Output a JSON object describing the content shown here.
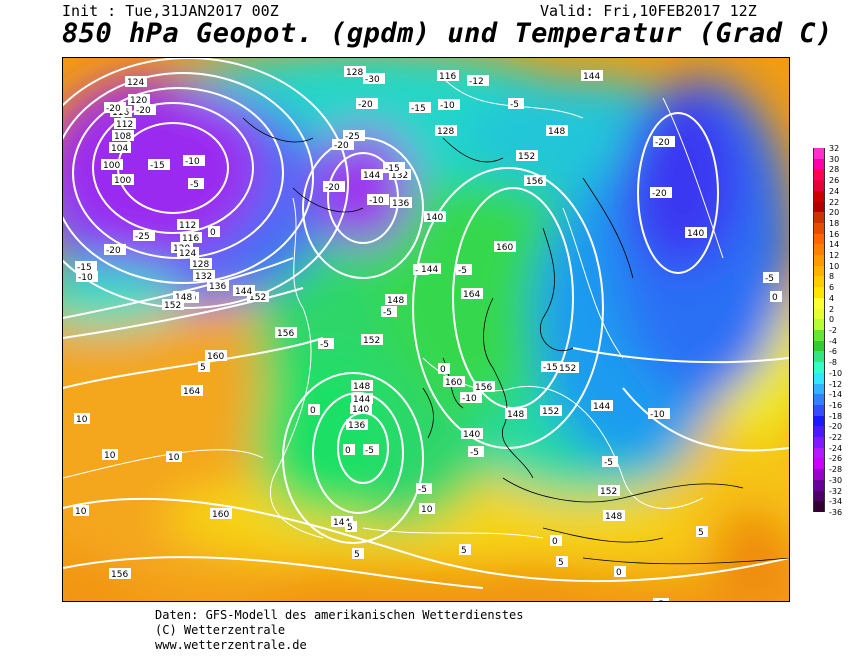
{
  "header": {
    "init": "Init : Tue,31JAN2017 00Z",
    "valid": "Valid: Fri,10FEB2017 12Z",
    "title": "850 hPa Geopot. (gpdm) und Temperatur (Grad C)"
  },
  "map": {
    "labels": [
      {
        "text": "124",
        "kind": "geopot"
      },
      {
        "text": "120",
        "kind": "geopot"
      },
      {
        "text": "116",
        "kind": "geopot"
      },
      {
        "text": "112",
        "kind": "geopot"
      },
      {
        "text": "108",
        "kind": "geopot"
      },
      {
        "text": "104",
        "kind": "geopot"
      },
      {
        "text": "100",
        "kind": "geopot"
      },
      {
        "text": "100",
        "kind": "geopot"
      },
      {
        "text": "-30",
        "kind": "temp"
      },
      {
        "text": "-30",
        "kind": "temp"
      },
      {
        "text": "-20",
        "kind": "temp"
      },
      {
        "text": "-20",
        "kind": "temp"
      },
      {
        "text": "-15",
        "kind": "temp"
      },
      {
        "text": "-10",
        "kind": "temp"
      },
      {
        "text": "-25",
        "kind": "temp"
      },
      {
        "text": "-20",
        "kind": "temp"
      },
      {
        "text": "-15",
        "kind": "temp"
      },
      {
        "text": "-10",
        "kind": "temp"
      },
      {
        "text": "-5",
        "kind": "temp"
      },
      {
        "text": "0",
        "kind": "temp"
      },
      {
        "text": "112",
        "kind": "geopot"
      },
      {
        "text": "116",
        "kind": "geopot"
      },
      {
        "text": "120",
        "kind": "geopot"
      },
      {
        "text": "124",
        "kind": "geopot"
      },
      {
        "text": "128",
        "kind": "geopot"
      },
      {
        "text": "132",
        "kind": "geopot"
      },
      {
        "text": "136",
        "kind": "geopot"
      },
      {
        "text": "140",
        "kind": "geopot"
      },
      {
        "text": "148",
        "kind": "geopot"
      },
      {
        "text": "152",
        "kind": "geopot"
      },
      {
        "text": "156",
        "kind": "geopot"
      },
      {
        "text": "144",
        "kind": "geopot"
      },
      {
        "text": "152",
        "kind": "geopot"
      },
      {
        "text": "10",
        "kind": "temp"
      },
      {
        "text": "10",
        "kind": "temp"
      },
      {
        "text": "160",
        "kind": "geopot"
      },
      {
        "text": "5",
        "kind": "temp"
      },
      {
        "text": "164",
        "kind": "geopot"
      },
      {
        "text": "10",
        "kind": "temp"
      },
      {
        "text": "10",
        "kind": "temp"
      },
      {
        "text": "160",
        "kind": "geopot"
      },
      {
        "text": "156",
        "kind": "geopot"
      },
      {
        "text": "128",
        "kind": "geopot"
      },
      {
        "text": "-30",
        "kind": "temp"
      },
      {
        "text": "-20",
        "kind": "temp"
      },
      {
        "text": "-25",
        "kind": "temp"
      },
      {
        "text": "-20",
        "kind": "temp"
      },
      {
        "text": "144",
        "kind": "geopot"
      },
      {
        "text": "-20",
        "kind": "temp"
      },
      {
        "text": "132",
        "kind": "geopot"
      },
      {
        "text": "-15",
        "kind": "temp"
      },
      {
        "text": "136",
        "kind": "geopot"
      },
      {
        "text": "-10",
        "kind": "temp"
      },
      {
        "text": "140",
        "kind": "geopot"
      },
      {
        "text": "-5",
        "kind": "temp"
      },
      {
        "text": "144",
        "kind": "geopot"
      },
      {
        "text": "148",
        "kind": "geopot"
      },
      {
        "text": "-5",
        "kind": "temp"
      },
      {
        "text": "116",
        "kind": "geopot"
      },
      {
        "text": "-12",
        "kind": "temp"
      },
      {
        "text": "-10",
        "kind": "temp"
      },
      {
        "text": "-15",
        "kind": "temp"
      },
      {
        "text": "128",
        "kind": "geopot"
      },
      {
        "text": "144",
        "kind": "geopot"
      },
      {
        "text": "-5",
        "kind": "temp"
      },
      {
        "text": "148",
        "kind": "geopot"
      },
      {
        "text": "152",
        "kind": "geopot"
      },
      {
        "text": "156",
        "kind": "geopot"
      },
      {
        "text": "160",
        "kind": "geopot"
      },
      {
        "text": "-5",
        "kind": "temp"
      },
      {
        "text": "164",
        "kind": "geopot"
      },
      {
        "text": "0",
        "kind": "temp"
      },
      {
        "text": "160",
        "kind": "geopot"
      },
      {
        "text": "156",
        "kind": "geopot"
      },
      {
        "text": "-10",
        "kind": "temp"
      },
      {
        "text": "148",
        "kind": "geopot"
      },
      {
        "text": "152",
        "kind": "geopot"
      },
      {
        "text": "-15",
        "kind": "temp"
      },
      {
        "text": "144",
        "kind": "geopot"
      },
      {
        "text": "-10",
        "kind": "temp"
      },
      {
        "text": "-5",
        "kind": "temp"
      },
      {
        "text": "-5",
        "kind": "temp"
      },
      {
        "text": "140",
        "kind": "geopot"
      },
      {
        "text": "148",
        "kind": "geopot"
      },
      {
        "text": "0",
        "kind": "temp"
      },
      {
        "text": "-20",
        "kind": "temp"
      },
      {
        "text": "-20",
        "kind": "temp"
      },
      {
        "text": "140",
        "kind": "geopot"
      },
      {
        "text": "-5",
        "kind": "temp"
      },
      {
        "text": "0",
        "kind": "temp"
      },
      {
        "text": "-5",
        "kind": "temp"
      },
      {
        "text": "152",
        "kind": "geopot"
      },
      {
        "text": "152",
        "kind": "geopot"
      },
      {
        "text": "5",
        "kind": "temp"
      },
      {
        "text": "-5",
        "kind": "temp"
      },
      {
        "text": "152",
        "kind": "geopot"
      },
      {
        "text": "148",
        "kind": "geopot"
      },
      {
        "text": "144",
        "kind": "geopot"
      },
      {
        "text": "140",
        "kind": "geopot"
      },
      {
        "text": "136",
        "kind": "geopot"
      },
      {
        "text": "0",
        "kind": "temp"
      },
      {
        "text": "-5",
        "kind": "temp"
      },
      {
        "text": "0",
        "kind": "temp"
      },
      {
        "text": "144",
        "kind": "geopot"
      },
      {
        "text": "5",
        "kind": "temp"
      },
      {
        "text": "5",
        "kind": "temp"
      },
      {
        "text": "10",
        "kind": "temp"
      },
      {
        "text": "5",
        "kind": "temp"
      },
      {
        "text": "-5",
        "kind": "temp"
      },
      {
        "text": "0",
        "kind": "temp"
      },
      {
        "text": "5",
        "kind": "temp"
      }
    ]
  },
  "scale": {
    "labels": [
      "32",
      "30",
      "28",
      "26",
      "24",
      "22",
      "20",
      "18",
      "16",
      "14",
      "12",
      "10",
      "8",
      "6",
      "4",
      "2",
      "0",
      "-2",
      "-4",
      "-6",
      "-8",
      "-10",
      "-12",
      "-14",
      "-16",
      "-18",
      "-20",
      "-22",
      "-24",
      "-26",
      "-28",
      "-30",
      "-32",
      "-34",
      "-36"
    ],
    "colors": [
      "#ff33cc",
      "#ff00aa",
      "#ff0055",
      "#e6003c",
      "#cc0000",
      "#b30000",
      "#cc3300",
      "#e64d00",
      "#ff6600",
      "#ff8000",
      "#ff9900",
      "#ffb300",
      "#ffcc00",
      "#ffe600",
      "#ffff33",
      "#e6ff33",
      "#b3ff33",
      "#66e633",
      "#33cc33",
      "#33e680",
      "#33ffcc",
      "#33e6ff",
      "#33b3ff",
      "#3380ff",
      "#334dff",
      "#1a1aff",
      "#4d1aff",
      "#801aff",
      "#b31aff",
      "#cc00ff",
      "#9900cc",
      "#660099",
      "#4d0066",
      "#330033"
    ]
  },
  "footer": {
    "line1": "Daten: GFS-Modell des amerikanischen Wetterdienstes",
    "line2": "(C) Wetterzentrale",
    "line3": "www.wetterzentrale.de"
  }
}
